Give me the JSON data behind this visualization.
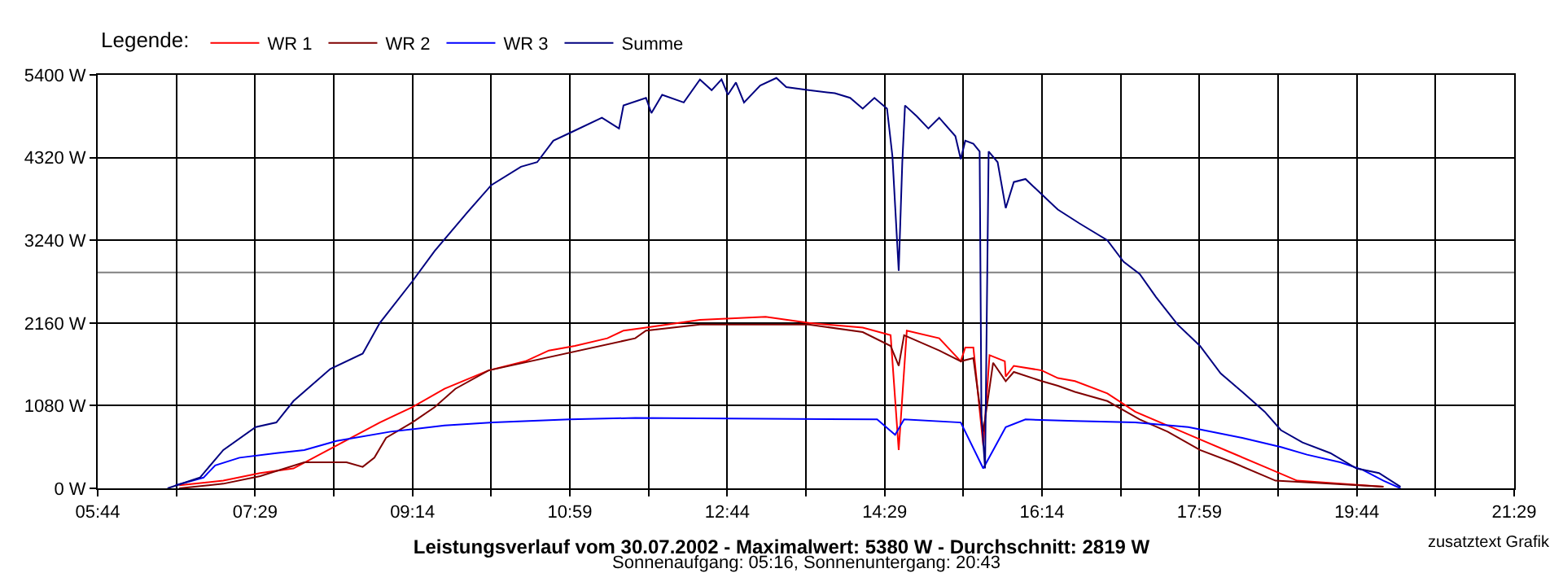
{
  "chart_data": {
    "type": "line",
    "title": "Leistungsverlauf vom 30.07.2002 - Maximalwert: 5380 W - Durchschnitt: 2819 W",
    "subtitle": "Sonnenaufgang: 05:16, Sonnenuntergang: 20:43",
    "legend_title": "Legende:",
    "annotations": [
      "zusatztext Grafik"
    ],
    "series": [
      {
        "name": "WR 1",
        "color": "#ff0000",
        "x": [
          6.64,
          7.13,
          7.54,
          7.91,
          8.39,
          8.87,
          9.23,
          9.59,
          10.08,
          10.49,
          10.75,
          11.04,
          11.4,
          11.58,
          11.83,
          12.43,
          13.16,
          13.64,
          14.24,
          14.55,
          14.64,
          14.73,
          15.09,
          15.33,
          15.38,
          15.47,
          15.58,
          15.65,
          15.82,
          15.83,
          15.92,
          16.23,
          16.41,
          16.6,
          16.96,
          17.27,
          17.63,
          17.99,
          18.35,
          18.71,
          19.07,
          19.55,
          20.03
        ],
        "values": [
          40,
          100,
          200,
          260,
          560,
          860,
          1060,
          1300,
          1540,
          1660,
          1800,
          1860,
          1960,
          2060,
          2100,
          2200,
          2240,
          2160,
          2100,
          2000,
          500,
          2060,
          1960,
          1660,
          1840,
          1840,
          560,
          1740,
          1660,
          1460,
          1600,
          1540,
          1440,
          1400,
          1240,
          1000,
          820,
          640,
          460,
          280,
          100,
          60,
          20
        ]
      },
      {
        "name": "WR 2",
        "color": "#800000",
        "x": [
          6.64,
          7.13,
          7.54,
          8.03,
          8.5,
          8.68,
          8.81,
          8.94,
          9.23,
          9.48,
          9.71,
          10.08,
          11.71,
          11.83,
          12.43,
          13.64,
          14.24,
          14.55,
          14.64,
          14.7,
          15.09,
          15.33,
          15.47,
          15.58,
          15.69,
          15.83,
          15.92,
          16.23,
          16.41,
          16.6,
          16.96,
          17.32,
          17.63,
          17.99,
          18.35,
          18.83,
          19.44,
          20.03
        ],
        "values": [
          0,
          60,
          160,
          340,
          340,
          280,
          400,
          660,
          860,
          1060,
          1300,
          1540,
          1960,
          2060,
          2140,
          2140,
          2040,
          1860,
          1600,
          2000,
          1800,
          1660,
          1700,
          740,
          1640,
          1400,
          1520,
          1400,
          1340,
          1260,
          1140,
          900,
          740,
          500,
          340,
          100,
          60,
          20
        ]
      },
      {
        "name": "WR 3",
        "color": "#0000ff",
        "x": [
          6.6,
          6.91,
          7.04,
          7.31,
          7.72,
          8.03,
          8.39,
          8.99,
          9.59,
          10.13,
          10.98,
          11.71,
          14.4,
          14.6,
          14.7,
          15.33,
          15.58,
          15.83,
          16.05,
          16.6,
          17.27,
          17.86,
          18.46,
          18.89,
          19.18,
          19.55,
          19.8,
          20.03,
          20.22
        ],
        "values": [
          40,
          140,
          300,
          400,
          460,
          500,
          620,
          740,
          820,
          860,
          900,
          920,
          900,
          700,
          900,
          860,
          260,
          800,
          900,
          880,
          860,
          800,
          660,
          540,
          440,
          340,
          240,
          100,
          0
        ]
      },
      {
        "name": "Summe",
        "color": "#000080",
        "x": [
          6.51,
          6.87,
          7.13,
          7.49,
          7.72,
          7.91,
          8.32,
          8.68,
          8.87,
          9.23,
          9.48,
          9.84,
          10.11,
          10.44,
          10.62,
          10.8,
          10.98,
          11.34,
          11.53,
          11.58,
          11.83,
          11.89,
          12.01,
          12.25,
          12.43,
          12.56,
          12.67,
          12.74,
          12.83,
          12.92,
          13.1,
          13.28,
          13.39,
          13.64,
          13.93,
          14.1,
          14.24,
          14.37,
          14.51,
          14.57,
          14.64,
          14.68,
          14.71,
          14.84,
          14.97,
          15.09,
          15.27,
          15.33,
          15.38,
          15.47,
          15.54,
          15.56,
          15.6,
          15.64,
          15.74,
          15.83,
          15.92,
          16.05,
          16.23,
          16.41,
          16.65,
          16.96,
          17.14,
          17.32,
          17.5,
          17.74,
          17.99,
          18.22,
          18.46,
          18.71,
          18.89,
          19.13,
          19.44,
          19.73,
          19.98,
          20.22
        ],
        "values": [
          0,
          140,
          500,
          800,
          860,
          1140,
          1560,
          1760,
          2160,
          2700,
          3100,
          3600,
          3960,
          4200,
          4260,
          4540,
          4640,
          4840,
          4700,
          5000,
          5100,
          4900,
          5140,
          5040,
          5340,
          5200,
          5340,
          5140,
          5300,
          5040,
          5260,
          5360,
          5240,
          5200,
          5160,
          5100,
          4960,
          5100,
          4960,
          4340,
          2840,
          4260,
          5000,
          4860,
          4700,
          4840,
          4600,
          4300,
          4540,
          4500,
          4400,
          940,
          260,
          4400,
          4260,
          3660,
          4000,
          4040,
          3840,
          3640,
          3460,
          3240,
          2960,
          2800,
          2500,
          2140,
          1860,
          1500,
          1260,
          1000,
          760,
          600,
          460,
          260,
          200,
          20
        ]
      }
    ],
    "xlim": [
      5.7333,
      21.4833
    ],
    "xticks": [
      {
        "value": 5.7333,
        "label": "05:44"
      },
      {
        "value": 6.6083,
        "label": null
      },
      {
        "value": 7.4833,
        "label": "07:29"
      },
      {
        "value": 8.3583,
        "label": null
      },
      {
        "value": 9.2333,
        "label": "09:14"
      },
      {
        "value": 10.1083,
        "label": null
      },
      {
        "value": 10.9833,
        "label": "10:59"
      },
      {
        "value": 11.8583,
        "label": null
      },
      {
        "value": 12.7333,
        "label": "12:44"
      },
      {
        "value": 13.6083,
        "label": null
      },
      {
        "value": 14.4833,
        "label": "14:29"
      },
      {
        "value": 15.3583,
        "label": null
      },
      {
        "value": 16.2333,
        "label": "16:14"
      },
      {
        "value": 17.1083,
        "label": null
      },
      {
        "value": 17.9833,
        "label": "17:59"
      },
      {
        "value": 18.8583,
        "label": null
      },
      {
        "value": 19.7333,
        "label": "19:44"
      },
      {
        "value": 20.6083,
        "label": null
      },
      {
        "value": 21.4833,
        "label": "21:29"
      }
    ],
    "ylim": [
      0,
      5400
    ],
    "yticks": [
      {
        "value": 0,
        "label": "0 W"
      },
      {
        "value": 1080,
        "label": "1080 W"
      },
      {
        "value": 2160,
        "label": "2160 W"
      },
      {
        "value": 3240,
        "label": "3240 W"
      },
      {
        "value": 4320,
        "label": "4320 W"
      },
      {
        "value": 5400,
        "label": "5400 W"
      }
    ],
    "ref_lines": [
      {
        "axis": "y",
        "value": 2819,
        "label": null,
        "color": "#808080"
      }
    ],
    "grid": true,
    "legend": "top left",
    "marker": "none",
    "line_style": "solid"
  }
}
